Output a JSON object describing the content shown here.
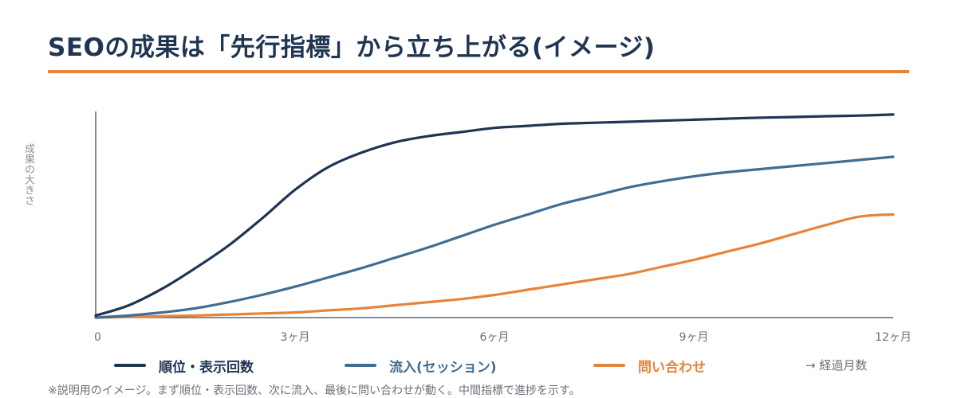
{
  "title": "SEOの成果は「先行指標」から立ち上がる(イメージ)",
  "colors": {
    "title": "#1f3552",
    "accent": "#e6843a",
    "series": [
      "#1f3552",
      "#416d91",
      "#e6843a"
    ]
  },
  "chart_data": {
    "type": "line",
    "ylabel": "成果の大きさ",
    "xlabel": "→ 経過月数",
    "x": [
      0,
      0.5,
      1,
      1.5,
      2,
      2.5,
      3,
      3.5,
      4,
      4.5,
      5,
      5.5,
      6,
      6.5,
      7,
      7.5,
      8,
      8.5,
      9,
      9.5,
      10,
      10.5,
      11,
      11.5,
      12
    ],
    "x_ticks": [
      0,
      3,
      6,
      9,
      12
    ],
    "x_tick_labels": [
      "0",
      "3ヶ月",
      "6ヶ月",
      "9ヶ月",
      "12ヶ月"
    ],
    "xlim": [
      0,
      12
    ],
    "ylim": [
      0,
      100
    ],
    "grid": false,
    "y_tick_labels": false,
    "legend_position": "bottom",
    "series": [
      {
        "name": "順位・表示回数",
        "color": "#1f3552",
        "values": [
          1,
          6,
          14,
          24,
          35,
          48,
          62,
          73,
          80,
          85,
          88,
          90,
          92,
          93,
          94,
          94.5,
          95,
          95.5,
          96,
          96.5,
          97,
          97.3,
          97.7,
          98,
          98.5
        ]
      },
      {
        "name": "流入(セッション)",
        "color": "#416d91",
        "values": [
          0,
          1,
          2.5,
          4.5,
          7.5,
          11,
          15,
          19.5,
          24,
          29,
          34,
          39.5,
          45,
          50,
          55,
          59,
          63,
          66,
          68.5,
          70.5,
          72,
          73.5,
          75,
          76.5,
          78
        ]
      },
      {
        "name": "問い合わせ",
        "color": "#e6843a",
        "values": [
          0,
          0.3,
          0.6,
          1,
          1.5,
          2,
          2.5,
          3.5,
          4.5,
          6,
          7.5,
          9,
          11,
          13.5,
          16,
          18.5,
          21,
          24.5,
          28,
          32,
          36,
          40.5,
          45,
          49,
          50
        ]
      }
    ]
  },
  "note": "※説明用のイメージ。まず順位・表示回数、次に流入、最後に問い合わせが動く。中間指標で進捗を示す。"
}
